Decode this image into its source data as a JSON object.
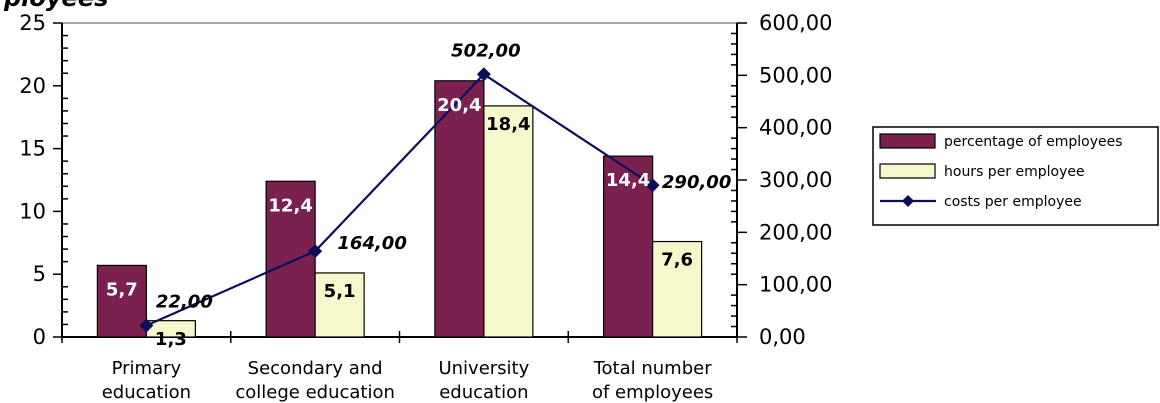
{
  "title_fragment": "ployees ",
  "chart_data": {
    "type": "bar",
    "categories": [
      [
        "Primary",
        "education"
      ],
      [
        "Secondary and",
        "college education"
      ],
      [
        "University",
        "education"
      ],
      [
        "Total number",
        "of employees"
      ]
    ],
    "series": [
      {
        "name": "percentage of employees",
        "kind": "bar",
        "axis": "left",
        "color": "#7B2150",
        "label_color": "#ffffff",
        "values": [
          5.7,
          12.4,
          20.4,
          14.4
        ],
        "labels": [
          "5,7",
          "12,4",
          "20,4",
          "14,4"
        ]
      },
      {
        "name": "hours per employee",
        "kind": "bar",
        "axis": "left",
        "color": "#F7F7CC",
        "label_color": "#000000",
        "values": [
          1.3,
          5.1,
          18.4,
          7.6
        ],
        "labels": [
          "1,3",
          "5,1",
          "18,4",
          "7,6"
        ]
      },
      {
        "name": "costs per employee",
        "kind": "line",
        "axis": "right",
        "color": "#0D0D5A",
        "values": [
          22,
          164,
          502,
          290
        ],
        "labels": [
          "22,00",
          "164,00",
          "502,00",
          "290,00"
        ]
      }
    ],
    "ylim_left": [
      0,
      25
    ],
    "yticks_left": [
      "0",
      "5",
      "10",
      "15",
      "20",
      "25"
    ],
    "ylim_right": [
      0,
      600
    ],
    "yticks_right": [
      "0,00",
      "100,00",
      "200,00",
      "300,00",
      "400,00",
      "500,00",
      "600,00"
    ],
    "grid": false,
    "legend_position": "right"
  }
}
